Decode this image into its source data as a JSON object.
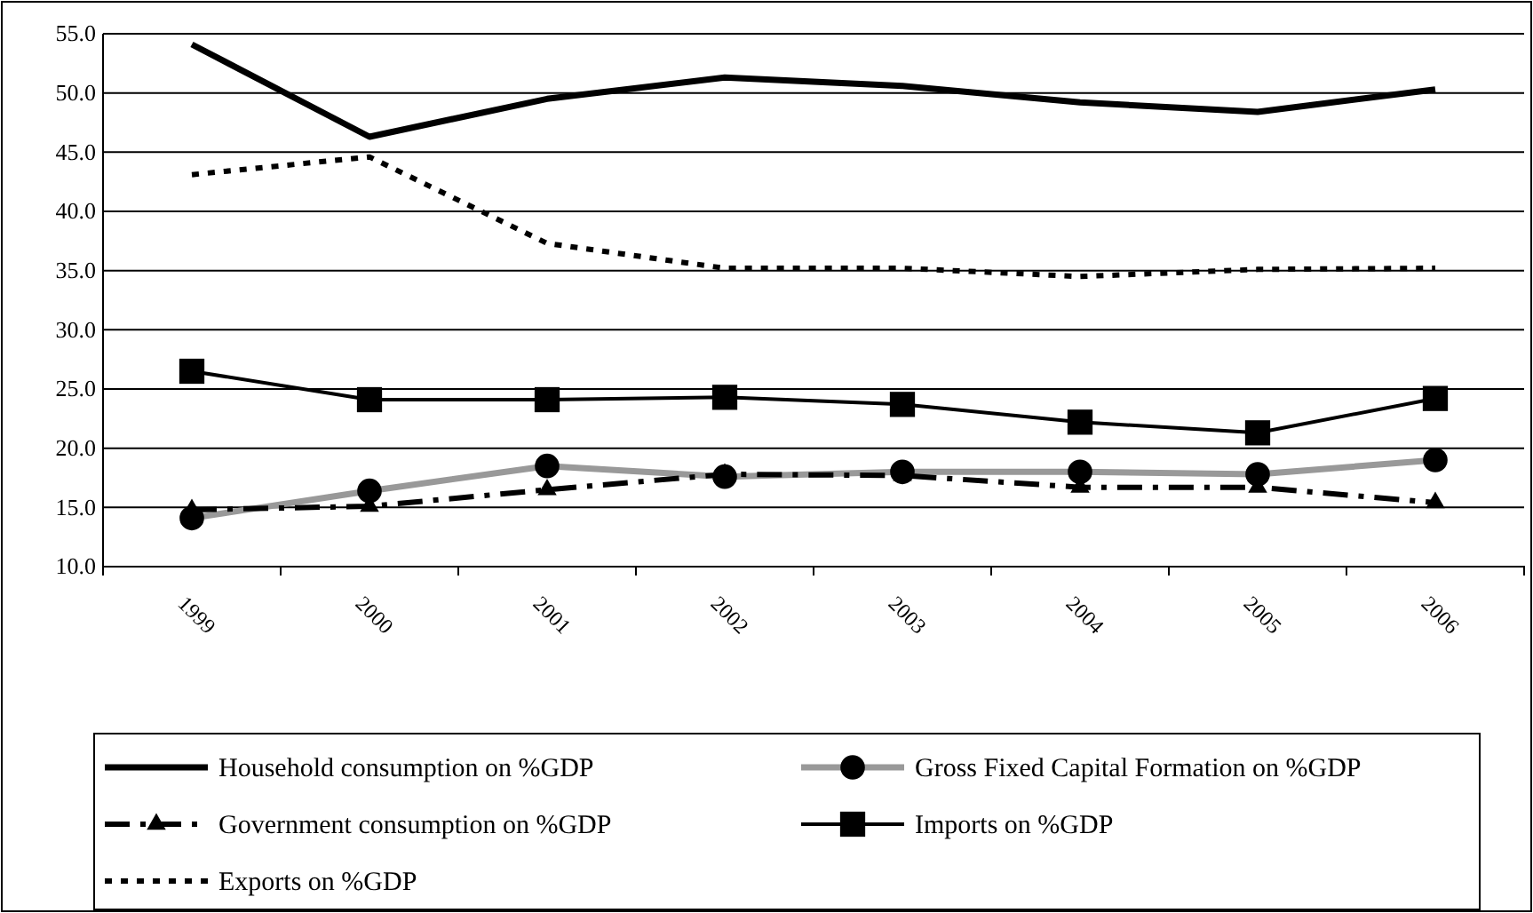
{
  "chart_data": {
    "type": "line",
    "categories": [
      "1999",
      "2000",
      "2001",
      "2002",
      "2003",
      "2004",
      "2005",
      "2006"
    ],
    "ylim": [
      10,
      55
    ],
    "yticks": [
      {
        "value": 10,
        "label": "10.0"
      },
      {
        "value": 15,
        "label": "15.0"
      },
      {
        "value": 20,
        "label": "20.0"
      },
      {
        "value": 25,
        "label": "25.0"
      },
      {
        "value": 30,
        "label": "30.0"
      },
      {
        "value": 35,
        "label": "35.0"
      },
      {
        "value": 40,
        "label": "40.0"
      },
      {
        "value": 45,
        "label": "45.0"
      },
      {
        "value": 50,
        "label": "50.0"
      },
      {
        "value": 55,
        "label": "55.0"
      }
    ],
    "grid": "y",
    "legend": "bottom",
    "series": [
      {
        "name": "Household consumption on %GDP",
        "color": "#000000",
        "marker": "none",
        "line_style": "solid",
        "values": [
          54.1,
          46.3,
          49.5,
          51.3,
          50.6,
          49.2,
          48.4,
          50.3
        ]
      },
      {
        "name": "Gross Fixed Capital Formation on %GDP",
        "color": "#999999",
        "marker": "circle",
        "line_style": "solid",
        "values": [
          14.1,
          16.4,
          18.5,
          17.6,
          18.0,
          18.0,
          17.8,
          19.0
        ]
      },
      {
        "name": "Government consumption on %GDP",
        "color": "#000000",
        "marker": "triangle",
        "line_style": "dashed",
        "values": [
          14.8,
          15.1,
          16.5,
          17.8,
          17.7,
          16.7,
          16.7,
          15.4
        ]
      },
      {
        "name": "Imports on %GDP",
        "color": "#000000",
        "marker": "square",
        "line_style": "solid",
        "values": [
          26.5,
          24.1,
          24.1,
          24.3,
          23.7,
          22.2,
          21.3,
          24.2
        ]
      },
      {
        "name": "Exports on %GDP",
        "color": "#000000",
        "marker": "none",
        "line_style": "dotted",
        "values": [
          43.1,
          44.6,
          37.3,
          35.2,
          35.2,
          34.5,
          35.1,
          35.2
        ]
      }
    ]
  }
}
